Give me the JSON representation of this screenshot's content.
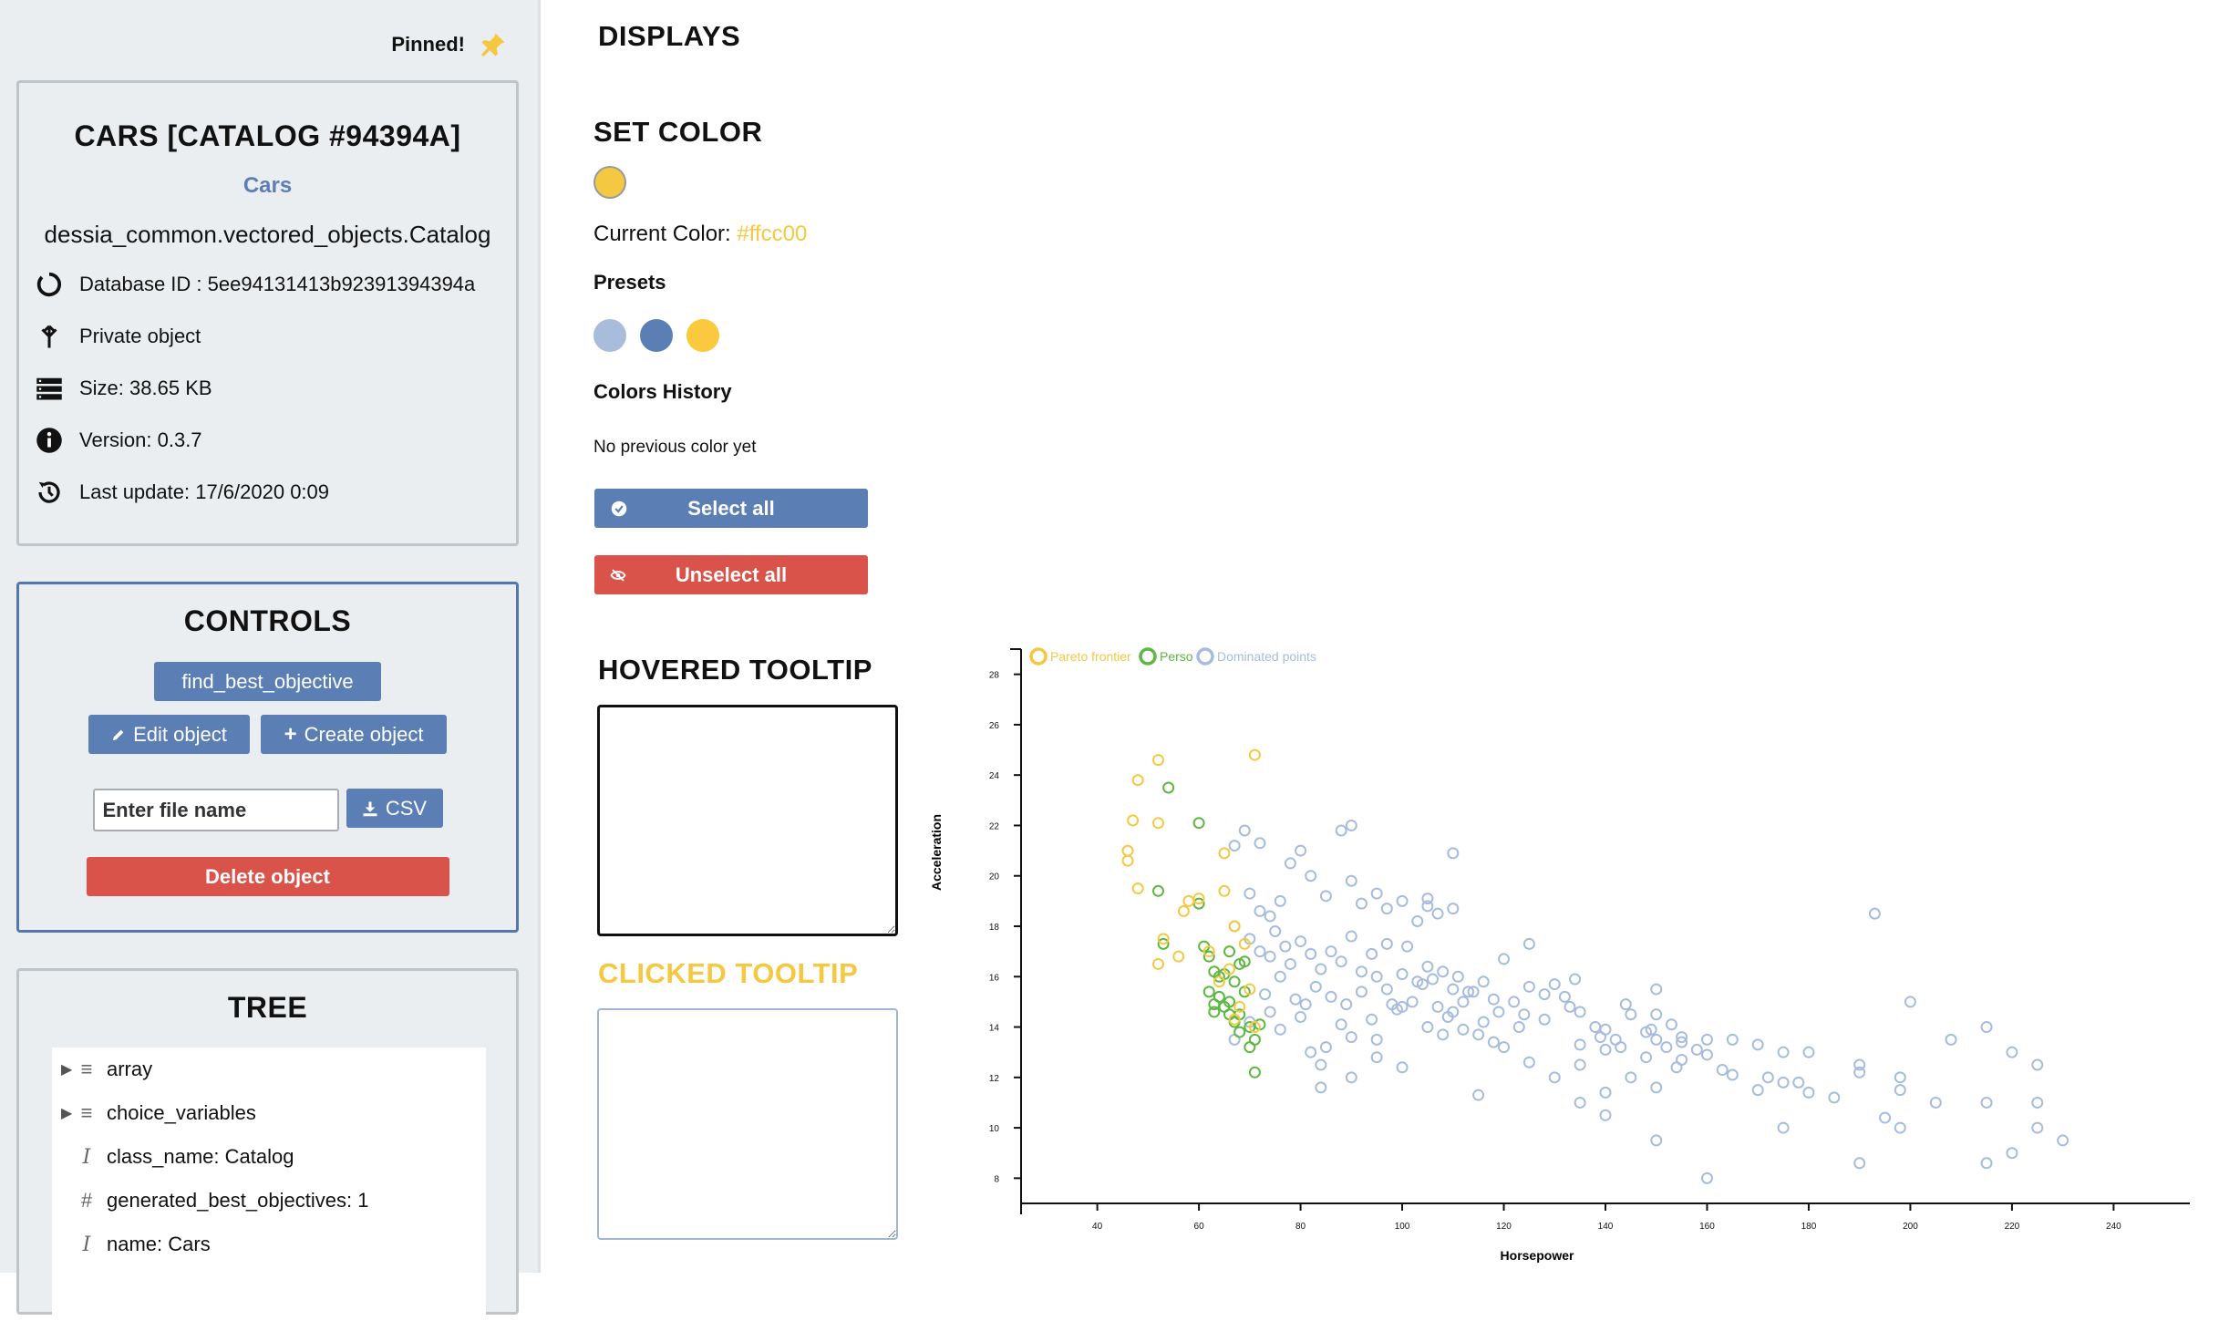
{
  "sidebar": {
    "pinned_label": "Pinned!",
    "info": {
      "title": "CARS [CATALOG #94394A]",
      "name": "Cars",
      "class_path": "dessia_common.vectored_objects.Catalog",
      "database_id": "Database ID : 5ee94131413b92391394394a",
      "privacy": "Private object",
      "size": "Size: 38.65 KB",
      "version": "Version: 0.3.7",
      "last_update": "Last update: 17/6/2020 0:09"
    },
    "controls": {
      "title": "CONTROLS",
      "find_best_objective": "find_best_objective",
      "edit_object": "Edit object",
      "create_object": "Create object",
      "file_name_placeholder": "Enter file name",
      "csv": "CSV",
      "delete_object": "Delete object"
    },
    "tree": {
      "title": "TREE",
      "items": [
        {
          "label": "array",
          "icon": "list-icon",
          "expandable": true
        },
        {
          "label": "choice_variables",
          "icon": "list-icon",
          "expandable": true
        },
        {
          "label": "class_name: Catalog",
          "icon": "text-cursor-icon",
          "expandable": false
        },
        {
          "label": "generated_best_objectives: 1",
          "icon": "hash-icon",
          "expandable": false
        },
        {
          "label": "name: Cars",
          "icon": "text-cursor-icon",
          "expandable": false
        }
      ]
    }
  },
  "main": {
    "displays_title": "DISPLAYS",
    "set_color_title": "SET COLOR",
    "current_color_label": "Current Color:",
    "current_color_value": "#ffcc00",
    "presets_label": "Presets",
    "presets": [
      "#a8bddc",
      "#5b7fb5",
      "#fbc93d"
    ],
    "colors_history_label": "Colors History",
    "no_history": "No previous color yet",
    "select_all": "Select all",
    "unselect_all": "Unselect all",
    "hovered_tooltip_title": "HOVERED TOOLTIP",
    "clicked_tooltip_title": "CLICKED TOOLTIP"
  },
  "colors": {
    "accent_blue": "#5b7fb5",
    "danger_red": "#d9534a",
    "pareto_yellow": "#f5c842",
    "pareto_green": "#5cb840",
    "dominated_blue": "#a7bcdc"
  },
  "chart_data": {
    "type": "scatter",
    "xlabel": "Horsepower",
    "ylabel": "Acceleration",
    "xlim": [
      25,
      255
    ],
    "ylim": [
      7,
      29
    ],
    "x_ticks": [
      40,
      60,
      80,
      100,
      120,
      140,
      160,
      180,
      200,
      220,
      240
    ],
    "y_ticks": [
      8,
      10,
      12,
      14,
      16,
      18,
      20,
      22,
      24,
      26,
      28
    ],
    "legend_position": "top-left",
    "series": [
      {
        "name": "Pareto frontier",
        "color": "#f5c842",
        "points": [
          [
            46,
            21
          ],
          [
            46,
            20.6
          ],
          [
            48,
            23.8
          ],
          [
            48,
            19.5
          ],
          [
            52,
            24.6
          ],
          [
            52,
            22.1
          ],
          [
            47,
            22.2
          ],
          [
            53,
            17.5
          ],
          [
            52,
            16.5
          ],
          [
            56,
            16.8
          ],
          [
            57,
            18.6
          ],
          [
            58,
            19.0
          ],
          [
            60,
            19.1
          ],
          [
            65,
            19.4
          ],
          [
            65,
            20.9
          ],
          [
            67,
            18.0
          ],
          [
            70,
            15.5
          ],
          [
            67,
            14.3
          ],
          [
            71,
            24.8
          ],
          [
            68,
            14.8
          ],
          [
            66,
            16.3
          ],
          [
            62,
            17.0
          ],
          [
            64,
            15.8
          ],
          [
            69,
            17.3
          ],
          [
            71,
            14.0
          ]
        ]
      },
      {
        "name": "Perso",
        "color": "#5cb840",
        "points": [
          [
            52,
            19.4
          ],
          [
            54,
            23.5
          ],
          [
            60,
            22.1
          ],
          [
            53,
            17.3
          ],
          [
            60,
            18.9
          ],
          [
            61,
            17.2
          ],
          [
            62,
            16.8
          ],
          [
            63,
            16.2
          ],
          [
            65,
            16.1
          ],
          [
            67,
            15.8
          ],
          [
            68,
            16.5
          ],
          [
            69,
            15.4
          ],
          [
            62,
            15.4
          ],
          [
            63,
            14.9
          ],
          [
            64,
            15.2
          ],
          [
            65,
            14.8
          ],
          [
            66,
            14.5
          ],
          [
            67,
            14.2
          ],
          [
            68,
            13.8
          ],
          [
            70,
            14.0
          ],
          [
            71,
            13.5
          ],
          [
            70,
            13.2
          ],
          [
            71,
            12.2
          ],
          [
            63,
            14.6
          ],
          [
            66,
            15.0
          ],
          [
            68,
            14.5
          ],
          [
            72,
            14.1
          ],
          [
            64,
            16.0
          ],
          [
            66,
            17.0
          ],
          [
            69,
            16.6
          ]
        ]
      },
      {
        "name": "Dominated points",
        "color": "#a7bcdc",
        "points": [
          [
            67,
            21.2
          ],
          [
            69,
            21.8
          ],
          [
            72,
            21.3
          ],
          [
            70,
            19.3
          ],
          [
            72,
            18.6
          ],
          [
            74,
            18.4
          ],
          [
            76,
            19.0
          ],
          [
            78,
            20.5
          ],
          [
            80,
            21.0
          ],
          [
            82,
            20.0
          ],
          [
            85,
            19.2
          ],
          [
            88,
            21.8
          ],
          [
            90,
            22.0
          ],
          [
            90,
            19.8
          ],
          [
            92,
            18.9
          ],
          [
            95,
            19.3
          ],
          [
            97,
            18.7
          ],
          [
            100,
            19.0
          ],
          [
            103,
            18.2
          ],
          [
            105,
            18.8
          ],
          [
            105,
            19.1
          ],
          [
            107,
            18.5
          ],
          [
            110,
            18.7
          ],
          [
            110,
            20.9
          ],
          [
            67,
            18.0
          ],
          [
            70,
            17.5
          ],
          [
            72,
            17.0
          ],
          [
            74,
            16.8
          ],
          [
            75,
            17.8
          ],
          [
            77,
            17.2
          ],
          [
            78,
            16.5
          ],
          [
            80,
            17.4
          ],
          [
            82,
            16.9
          ],
          [
            84,
            16.3
          ],
          [
            86,
            17.0
          ],
          [
            88,
            16.6
          ],
          [
            90,
            17.6
          ],
          [
            92,
            16.2
          ],
          [
            94,
            16.9
          ],
          [
            95,
            16.0
          ],
          [
            97,
            17.3
          ],
          [
            100,
            16.1
          ],
          [
            101,
            17.2
          ],
          [
            103,
            15.8
          ],
          [
            105,
            16.4
          ],
          [
            106,
            15.9
          ],
          [
            108,
            16.2
          ],
          [
            110,
            15.5
          ],
          [
            112,
            15.0
          ],
          [
            114,
            15.4
          ],
          [
            116,
            15.8
          ],
          [
            118,
            15.1
          ],
          [
            120,
            16.7
          ],
          [
            122,
            15.0
          ],
          [
            125,
            17.3
          ],
          [
            125,
            15.6
          ],
          [
            128,
            14.3
          ],
          [
            130,
            15.7
          ],
          [
            132,
            15.2
          ],
          [
            134,
            15.9
          ],
          [
            135,
            14.6
          ],
          [
            138,
            14.0
          ],
          [
            140,
            13.1
          ],
          [
            140,
            13.9
          ],
          [
            142,
            13.5
          ],
          [
            145,
            14.5
          ],
          [
            148,
            13.8
          ],
          [
            150,
            15.5
          ],
          [
            150,
            14.5
          ],
          [
            150,
            13.5
          ],
          [
            152,
            13.2
          ],
          [
            153,
            14.1
          ],
          [
            155,
            13.6
          ],
          [
            158,
            13.1
          ],
          [
            160,
            13.5
          ],
          [
            165,
            13.5
          ],
          [
            170,
            13.3
          ],
          [
            175,
            13.0
          ],
          [
            180,
            13.0
          ],
          [
            190,
            12.5
          ],
          [
            193,
            18.5
          ],
          [
            198,
            12.0
          ],
          [
            200,
            15.0
          ],
          [
            208,
            13.5
          ],
          [
            215,
            14.0
          ],
          [
            220,
            13.0
          ],
          [
            225,
            12.5
          ],
          [
            67,
            13.5
          ],
          [
            70,
            14.2
          ],
          [
            74,
            14.6
          ],
          [
            76,
            13.9
          ],
          [
            80,
            14.4
          ],
          [
            82,
            13.0
          ],
          [
            84,
            12.5
          ],
          [
            85,
            13.2
          ],
          [
            88,
            14.1
          ],
          [
            90,
            13.6
          ],
          [
            95,
            12.8
          ],
          [
            98,
            14.9
          ],
          [
            100,
            12.4
          ],
          [
            105,
            14.0
          ],
          [
            110,
            14.6
          ],
          [
            115,
            13.7
          ],
          [
            120,
            13.2
          ],
          [
            125,
            12.6
          ],
          [
            130,
            12.0
          ],
          [
            135,
            12.5
          ],
          [
            140,
            11.4
          ],
          [
            145,
            12.0
          ],
          [
            150,
            11.6
          ],
          [
            155,
            12.7
          ],
          [
            160,
            12.9
          ],
          [
            165,
            12.1
          ],
          [
            170,
            11.5
          ],
          [
            175,
            11.8
          ],
          [
            180,
            11.4
          ],
          [
            190,
            12.2
          ],
          [
            198,
            11.5
          ],
          [
            205,
            11.0
          ],
          [
            215,
            11.0
          ],
          [
            225,
            11.0
          ],
          [
            230,
            9.5
          ],
          [
            225,
            10.0
          ],
          [
            220,
            9.0
          ],
          [
            215,
            8.6
          ],
          [
            198,
            10.0
          ],
          [
            190,
            8.6
          ],
          [
            175,
            10.0
          ],
          [
            160,
            8.0
          ],
          [
            150,
            9.5
          ],
          [
            140,
            10.5
          ],
          [
            135,
            11.0
          ],
          [
            115,
            11.3
          ],
          [
            84,
            11.6
          ],
          [
            90,
            12.0
          ],
          [
            95,
            13.5
          ],
          [
            100,
            14.8
          ],
          [
            108,
            13.7
          ],
          [
            112,
            13.9
          ],
          [
            118,
            13.4
          ],
          [
            123,
            14.0
          ],
          [
            128,
            15.3
          ],
          [
            135,
            13.3
          ],
          [
            143,
            13.2
          ],
          [
            148,
            12.8
          ],
          [
            155,
            13.4
          ],
          [
            163,
            12.3
          ],
          [
            172,
            12.0
          ],
          [
            178,
            11.8
          ],
          [
            185,
            11.2
          ],
          [
            195,
            10.4
          ],
          [
            73,
            15.3
          ],
          [
            76,
            16.0
          ],
          [
            79,
            15.1
          ],
          [
            81,
            14.9
          ],
          [
            83,
            15.6
          ],
          [
            86,
            15.2
          ],
          [
            89,
            14.9
          ],
          [
            92,
            15.4
          ],
          [
            94,
            14.3
          ],
          [
            97,
            15.5
          ],
          [
            99,
            14.7
          ],
          [
            102,
            15.0
          ],
          [
            104,
            15.7
          ],
          [
            107,
            14.8
          ],
          [
            109,
            14.4
          ],
          [
            111,
            16.0
          ],
          [
            113,
            15.4
          ],
          [
            116,
            14.2
          ],
          [
            119,
            14.6
          ],
          [
            124,
            14.5
          ],
          [
            133,
            14.8
          ],
          [
            139,
            13.6
          ],
          [
            144,
            14.9
          ],
          [
            149,
            13.9
          ],
          [
            154,
            12.4
          ]
        ]
      }
    ]
  }
}
